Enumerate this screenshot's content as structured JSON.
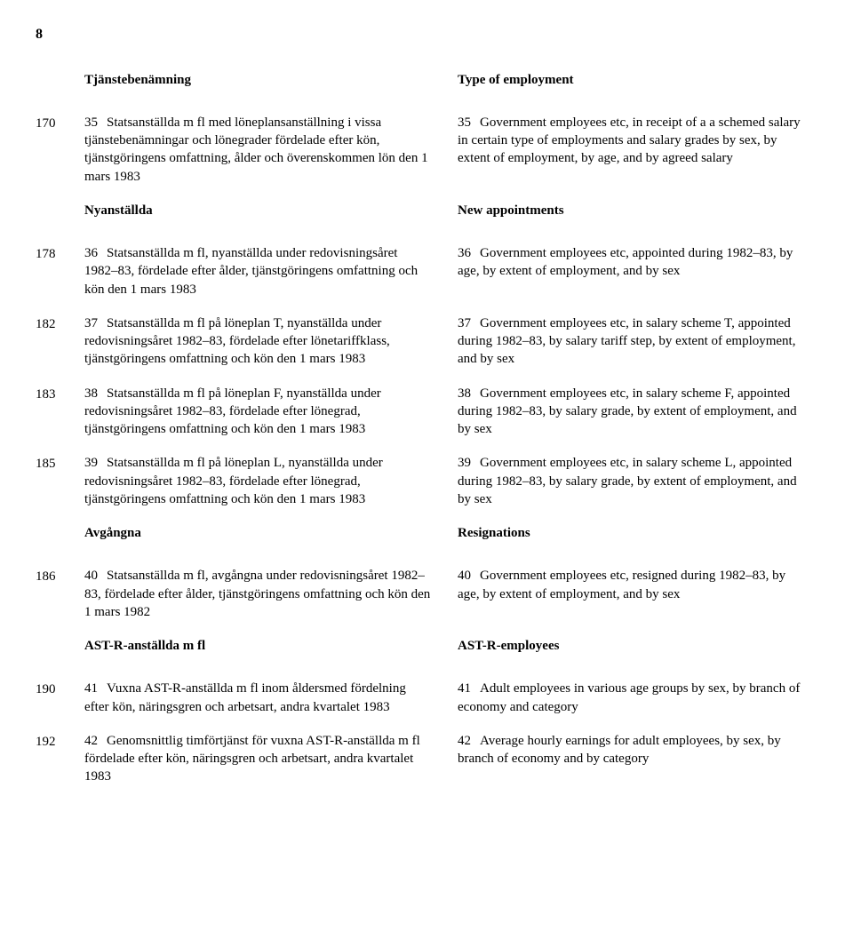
{
  "page_number": "8",
  "columns": {
    "left_heading": "Tjänstebenämning",
    "right_heading": "Type of employment"
  },
  "rows": [
    {
      "page": "170",
      "left_num": "35",
      "left": "Statsanställda m fl med löneplansanställning i vissa tjänstebenämningar och lönegrader fördelade efter kön, tjänstgöringens omfattning, ålder och överenskommen lön den 1 mars 1983",
      "right_num": "35",
      "right": "Government employees etc, in receipt of a a schemed salary in certain type of employments and salary grades by sex, by extent of employment, by age, and by agreed salary"
    },
    {
      "subheading_left": "Nyanställda",
      "subheading_right": "New appointments"
    },
    {
      "page": "178",
      "left_num": "36",
      "left": "Statsanställda m fl, nyanställda under redovisningsåret 1982–83, fördelade efter ålder, tjänstgöringens omfattning och kön den 1 mars 1983",
      "right_num": "36",
      "right": "Government employees etc, appointed during 1982–83, by age, by extent of employment, and by sex"
    },
    {
      "page": "182",
      "left_num": "37",
      "left": "Statsanställda m fl på löneplan T, nyanställda under redovisningsåret 1982–83, fördelade efter lönetariffklass, tjänstgöringens omfattning och kön den 1 mars 1983",
      "right_num": "37",
      "right": "Government employees etc, in salary scheme T, appointed during 1982–83, by salary tariff step, by extent of employment, and by sex"
    },
    {
      "page": "183",
      "left_num": "38",
      "left": "Statsanställda m fl på löneplan F, nyanställda under redovisningsåret 1982–83, fördelade efter lönegrad, tjänstgöringens omfattning och kön den 1 mars 1983",
      "right_num": "38",
      "right": "Government employees etc, in salary scheme F, appointed during 1982–83, by salary grade, by extent of employment, and by sex"
    },
    {
      "page": "185",
      "left_num": "39",
      "left": "Statsanställda m fl på löneplan L, nyanställda under redovisningsåret 1982–83, fördelade efter lönegrad, tjänstgöringens omfattning och kön den 1 mars 1983",
      "right_num": "39",
      "right": "Government employees etc, in salary scheme L, appointed during 1982–83, by salary grade, by extent of employment, and by sex"
    },
    {
      "subheading_left": "Avgångna",
      "subheading_right": "Resignations"
    },
    {
      "page": "186",
      "left_num": "40",
      "left": "Statsanställda m fl, avgångna under redovisningsåret 1982–83, fördelade efter ålder, tjänstgöringens omfattning och kön den 1 mars 1982",
      "right_num": "40",
      "right": "Government employees etc, resigned during 1982–83, by age, by extent of employment, and by sex"
    },
    {
      "subheading_left": "AST-R-anställda m fl",
      "subheading_right": "AST-R-employees"
    },
    {
      "page": "190",
      "left_num": "41",
      "left": "Vuxna AST-R-anställda m fl inom åldersmed fördelning efter kön, näringsgren och arbetsart, andra kvartalet 1983",
      "right_num": "41",
      "right": "Adult employees in various age groups by sex, by branch of economy and category"
    },
    {
      "page": "192",
      "left_num": "42",
      "left": "Genomsnittlig timförtjänst för vuxna AST-R-anställda m fl fördelade efter kön, näringsgren och arbetsart, andra kvartalet 1983",
      "right_num": "42",
      "right": "Average hourly earnings for adult employees, by sex, by branch of economy and by category"
    }
  ]
}
